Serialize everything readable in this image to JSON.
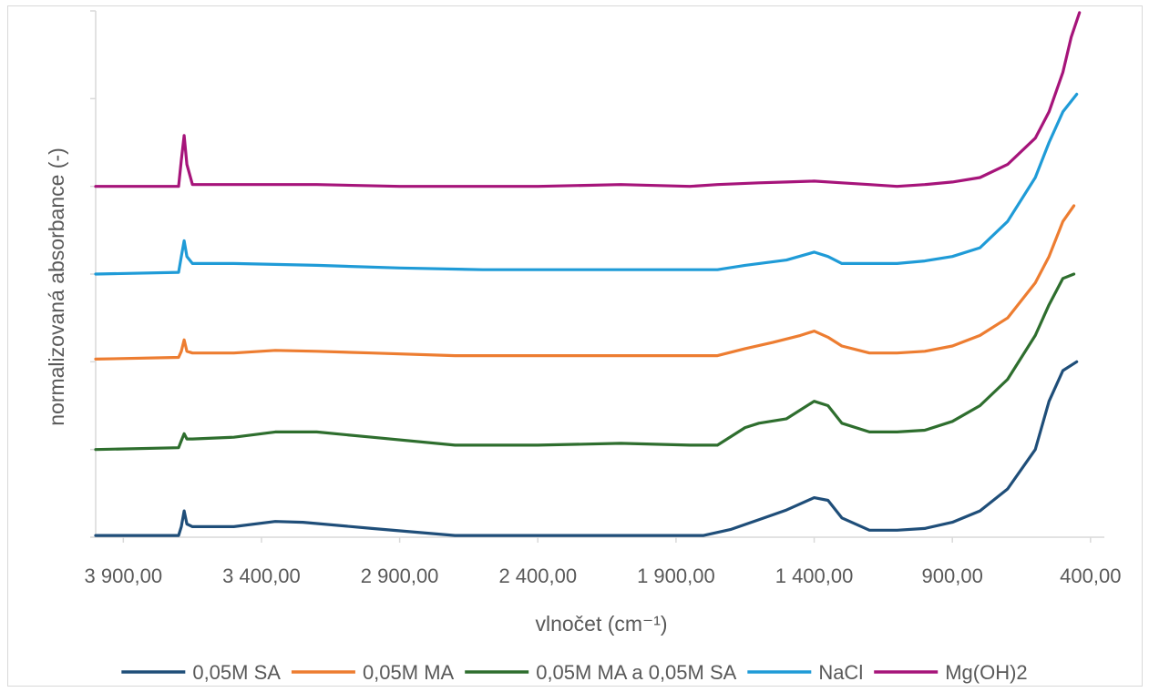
{
  "chart_data": {
    "type": "line",
    "title": "",
    "xlabel": "vlnočet (cm⁻¹)",
    "ylabel": "normalizovaná absorbance (-)",
    "x_reversed": true,
    "xlim": [
      4000,
      350
    ],
    "ylim": [
      0,
      6
    ],
    "x_ticks": [
      3900,
      3400,
      2900,
      2400,
      1900,
      1400,
      900,
      400
    ],
    "x_tick_labels": [
      "3 900,00",
      "3 400,00",
      "2 900,00",
      "2 400,00",
      "1 900,00",
      "1 400,00",
      "900,00",
      "400,00"
    ],
    "y_tick_labels_shown": false,
    "grid": false,
    "legend_position": "bottom",
    "series": [
      {
        "name": "0,05M SA",
        "color": "#1f4e79",
        "points": [
          [
            4000,
            0.02
          ],
          [
            3700,
            0.02
          ],
          [
            3690,
            0.12
          ],
          [
            3680,
            0.3
          ],
          [
            3670,
            0.15
          ],
          [
            3650,
            0.12
          ],
          [
            3500,
            0.12
          ],
          [
            3350,
            0.18
          ],
          [
            3250,
            0.17
          ],
          [
            3000,
            0.1
          ],
          [
            2700,
            0.02
          ],
          [
            2400,
            0.02
          ],
          [
            2100,
            0.02
          ],
          [
            1800,
            0.02
          ],
          [
            1700,
            0.09
          ],
          [
            1600,
            0.2
          ],
          [
            1500,
            0.31
          ],
          [
            1400,
            0.45
          ],
          [
            1350,
            0.42
          ],
          [
            1300,
            0.22
          ],
          [
            1200,
            0.08
          ],
          [
            1100,
            0.08
          ],
          [
            1000,
            0.1
          ],
          [
            900,
            0.17
          ],
          [
            800,
            0.3
          ],
          [
            700,
            0.55
          ],
          [
            600,
            1.0
          ],
          [
            550,
            1.55
          ],
          [
            500,
            1.9
          ],
          [
            450,
            2.0
          ]
        ]
      },
      {
        "name": "0,05M MA",
        "color": "#ed7d31",
        "points": [
          [
            4000,
            2.03
          ],
          [
            3700,
            2.05
          ],
          [
            3690,
            2.12
          ],
          [
            3680,
            2.25
          ],
          [
            3670,
            2.12
          ],
          [
            3650,
            2.1
          ],
          [
            3500,
            2.1
          ],
          [
            3350,
            2.13
          ],
          [
            3200,
            2.12
          ],
          [
            3000,
            2.1
          ],
          [
            2700,
            2.07
          ],
          [
            2400,
            2.07
          ],
          [
            2100,
            2.07
          ],
          [
            1850,
            2.07
          ],
          [
            1750,
            2.07
          ],
          [
            1650,
            2.15
          ],
          [
            1550,
            2.22
          ],
          [
            1450,
            2.3
          ],
          [
            1400,
            2.35
          ],
          [
            1350,
            2.28
          ],
          [
            1300,
            2.18
          ],
          [
            1200,
            2.1
          ],
          [
            1100,
            2.1
          ],
          [
            1000,
            2.12
          ],
          [
            900,
            2.18
          ],
          [
            800,
            2.3
          ],
          [
            700,
            2.5
          ],
          [
            600,
            2.9
          ],
          [
            550,
            3.2
          ],
          [
            500,
            3.6
          ],
          [
            460,
            3.78
          ]
        ]
      },
      {
        "name": "0,05M MA a 0,05M SA",
        "color": "#2e6e2e",
        "points": [
          [
            4000,
            1.0
          ],
          [
            3700,
            1.02
          ],
          [
            3690,
            1.1
          ],
          [
            3680,
            1.18
          ],
          [
            3670,
            1.12
          ],
          [
            3650,
            1.12
          ],
          [
            3500,
            1.14
          ],
          [
            3350,
            1.2
          ],
          [
            3200,
            1.2
          ],
          [
            3000,
            1.14
          ],
          [
            2700,
            1.05
          ],
          [
            2400,
            1.05
          ],
          [
            2100,
            1.07
          ],
          [
            1850,
            1.05
          ],
          [
            1750,
            1.05
          ],
          [
            1650,
            1.25
          ],
          [
            1600,
            1.3
          ],
          [
            1500,
            1.35
          ],
          [
            1400,
            1.55
          ],
          [
            1350,
            1.5
          ],
          [
            1300,
            1.3
          ],
          [
            1200,
            1.2
          ],
          [
            1100,
            1.2
          ],
          [
            1000,
            1.22
          ],
          [
            900,
            1.32
          ],
          [
            800,
            1.5
          ],
          [
            700,
            1.8
          ],
          [
            600,
            2.3
          ],
          [
            550,
            2.65
          ],
          [
            500,
            2.95
          ],
          [
            460,
            3.0
          ]
        ]
      },
      {
        "name": "NaCl",
        "color": "#1f9bd7",
        "points": [
          [
            4000,
            3.0
          ],
          [
            3700,
            3.02
          ],
          [
            3690,
            3.2
          ],
          [
            3680,
            3.38
          ],
          [
            3670,
            3.2
          ],
          [
            3650,
            3.12
          ],
          [
            3500,
            3.12
          ],
          [
            3200,
            3.1
          ],
          [
            2900,
            3.07
          ],
          [
            2600,
            3.05
          ],
          [
            2400,
            3.05
          ],
          [
            2100,
            3.05
          ],
          [
            1850,
            3.05
          ],
          [
            1750,
            3.05
          ],
          [
            1650,
            3.1
          ],
          [
            1500,
            3.16
          ],
          [
            1400,
            3.25
          ],
          [
            1350,
            3.2
          ],
          [
            1300,
            3.12
          ],
          [
            1200,
            3.12
          ],
          [
            1100,
            3.12
          ],
          [
            1000,
            3.15
          ],
          [
            900,
            3.2
          ],
          [
            800,
            3.3
          ],
          [
            700,
            3.6
          ],
          [
            600,
            4.1
          ],
          [
            550,
            4.5
          ],
          [
            500,
            4.85
          ],
          [
            450,
            5.05
          ]
        ]
      },
      {
        "name": "Mg(OH)2",
        "color": "#a6147a",
        "points": [
          [
            4000,
            4.0
          ],
          [
            3700,
            4.0
          ],
          [
            3690,
            4.3
          ],
          [
            3680,
            4.58
          ],
          [
            3670,
            4.25
          ],
          [
            3650,
            4.02
          ],
          [
            3500,
            4.02
          ],
          [
            3200,
            4.02
          ],
          [
            2900,
            4.0
          ],
          [
            2600,
            4.0
          ],
          [
            2400,
            4.0
          ],
          [
            2100,
            4.02
          ],
          [
            1850,
            4.0
          ],
          [
            1750,
            4.02
          ],
          [
            1600,
            4.04
          ],
          [
            1500,
            4.05
          ],
          [
            1400,
            4.06
          ],
          [
            1300,
            4.04
          ],
          [
            1200,
            4.02
          ],
          [
            1100,
            4.0
          ],
          [
            1000,
            4.02
          ],
          [
            900,
            4.05
          ],
          [
            800,
            4.1
          ],
          [
            700,
            4.25
          ],
          [
            600,
            4.55
          ],
          [
            550,
            4.85
          ],
          [
            500,
            5.3
          ],
          [
            470,
            5.7
          ],
          [
            440,
            5.98
          ]
        ]
      }
    ]
  }
}
